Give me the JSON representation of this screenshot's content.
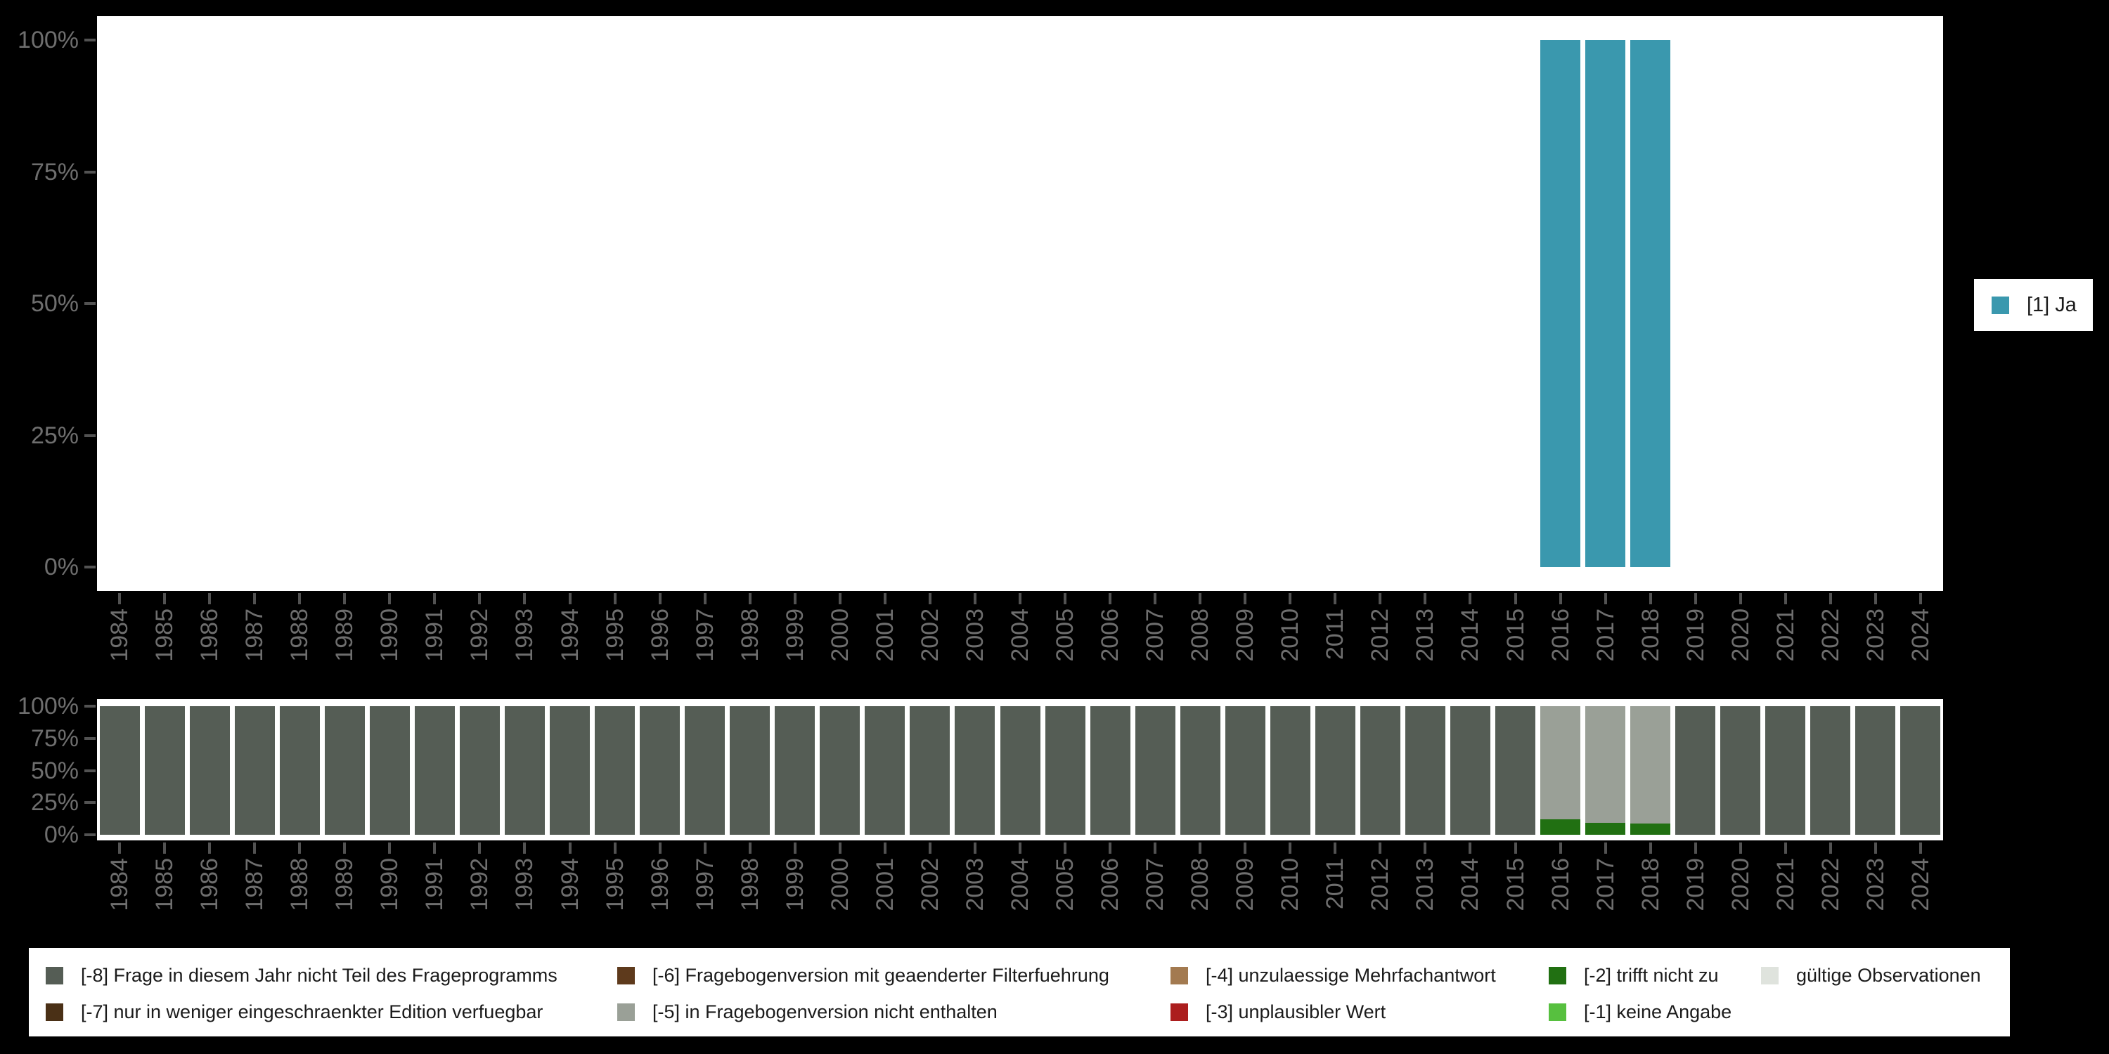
{
  "page": {
    "background": "#000000",
    "plot_background": "#ffffff"
  },
  "axis_style": {
    "tick_color": "#525252",
    "label_color": "#6e6e6e"
  },
  "chart_data": [
    {
      "id": "answer-frequencies",
      "type": "bar",
      "stacked": true,
      "title": "",
      "xlabel": "",
      "ylabel": "",
      "ylim": [
        0,
        100
      ],
      "grid": false,
      "legend_position": "right",
      "categories": [
        "1984",
        "1985",
        "1986",
        "1987",
        "1988",
        "1989",
        "1990",
        "1991",
        "1992",
        "1993",
        "1994",
        "1995",
        "1996",
        "1997",
        "1998",
        "1999",
        "2000",
        "2001",
        "2002",
        "2003",
        "2004",
        "2005",
        "2006",
        "2007",
        "2008",
        "2009",
        "2010",
        "2011",
        "2012",
        "2013",
        "2014",
        "2015",
        "2016",
        "2017",
        "2018",
        "2019",
        "2020",
        "2021",
        "2022",
        "2023",
        "2024"
      ],
      "ytick_labels": [
        "100%",
        "75%",
        "50%",
        "25%",
        "0%"
      ],
      "ytick_values": [
        100,
        75,
        50,
        25,
        0
      ],
      "series": [
        {
          "name": "[1] Ja",
          "color": "#3a98ae",
          "values": [
            0,
            0,
            0,
            0,
            0,
            0,
            0,
            0,
            0,
            0,
            0,
            0,
            0,
            0,
            0,
            0,
            0,
            0,
            0,
            0,
            0,
            0,
            0,
            0,
            0,
            0,
            0,
            0,
            0,
            0,
            0,
            0,
            100,
            100,
            100,
            0,
            0,
            0,
            0,
            0,
            0
          ]
        }
      ]
    },
    {
      "id": "missing-codes",
      "type": "bar",
      "stacked": true,
      "title": "",
      "xlabel": "",
      "ylabel": "",
      "ylim": [
        0,
        100
      ],
      "grid": false,
      "legend_position": "bottom",
      "categories": [
        "1984",
        "1985",
        "1986",
        "1987",
        "1988",
        "1989",
        "1990",
        "1991",
        "1992",
        "1993",
        "1994",
        "1995",
        "1996",
        "1997",
        "1998",
        "1999",
        "2000",
        "2001",
        "2002",
        "2003",
        "2004",
        "2005",
        "2006",
        "2007",
        "2008",
        "2009",
        "2010",
        "2011",
        "2012",
        "2013",
        "2014",
        "2015",
        "2016",
        "2017",
        "2018",
        "2019",
        "2020",
        "2021",
        "2022",
        "2023",
        "2024"
      ],
      "ytick_labels": [
        "100%",
        "75%",
        "50%",
        "25%",
        "0%"
      ],
      "ytick_values": [
        100,
        75,
        50,
        25,
        0
      ],
      "series": [
        {
          "name": "[-2] trifft nicht zu",
          "color": "#217012",
          "values": [
            0,
            0,
            0,
            0,
            0,
            0,
            0,
            0,
            0,
            0,
            0,
            0,
            0,
            0,
            0,
            0,
            0,
            0,
            0,
            0,
            0,
            0,
            0,
            0,
            0,
            0,
            0,
            0,
            0,
            0,
            0,
            0,
            12,
            9.5,
            8.5,
            0,
            0,
            0,
            0,
            0,
            0
          ]
        },
        {
          "name": "[-5] in Fragebogenversion nicht enthalten",
          "color": "#9aa097",
          "values": [
            0,
            0,
            0,
            0,
            0,
            0,
            0,
            0,
            0,
            0,
            0,
            0,
            0,
            0,
            0,
            0,
            0,
            0,
            0,
            0,
            0,
            0,
            0,
            0,
            0,
            0,
            0,
            0,
            0,
            0,
            0,
            0,
            88,
            90.5,
            91.5,
            0,
            0,
            0,
            0,
            0,
            0
          ]
        },
        {
          "name": "[-8] Frage in diesem Jahr nicht Teil des Frageprogramms",
          "color": "#555d55",
          "values": [
            100,
            100,
            100,
            100,
            100,
            100,
            100,
            100,
            100,
            100,
            100,
            100,
            100,
            100,
            100,
            100,
            100,
            100,
            100,
            100,
            100,
            100,
            100,
            100,
            100,
            100,
            100,
            100,
            100,
            100,
            100,
            100,
            0,
            0,
            0,
            100,
            100,
            100,
            100,
            100,
            100
          ]
        }
      ]
    }
  ],
  "missing_legend": {
    "columns": [
      {
        "items": [
          {
            "label": "[-8] Frage in diesem Jahr nicht Teil des Frageprogramms",
            "color": "#555d55"
          },
          {
            "label": "[-7] nur in weniger eingeschraenkter Edition verfuegbar",
            "color": "#4a3016"
          }
        ]
      },
      {
        "items": [
          {
            "label": "[-6] Fragebogenversion mit geaenderter Filterfuehrung",
            "color": "#5e3a1c"
          },
          {
            "label": "[-5] in Fragebogenversion nicht enthalten",
            "color": "#9aa097"
          }
        ]
      },
      {
        "items": [
          {
            "label": "[-4] unzulaessige Mehrfachantwort",
            "color": "#a37a50"
          },
          {
            "label": "[-3] unplausibler Wert",
            "color": "#ac1e1e"
          }
        ]
      },
      {
        "items": [
          {
            "label": "[-2] trifft nicht zu",
            "color": "#217012"
          },
          {
            "label": "[-1] keine Angabe",
            "color": "#57c03f"
          }
        ]
      },
      {
        "items": [
          {
            "label": "gültige Observationen",
            "color": "#dfe3dd"
          }
        ]
      }
    ]
  }
}
